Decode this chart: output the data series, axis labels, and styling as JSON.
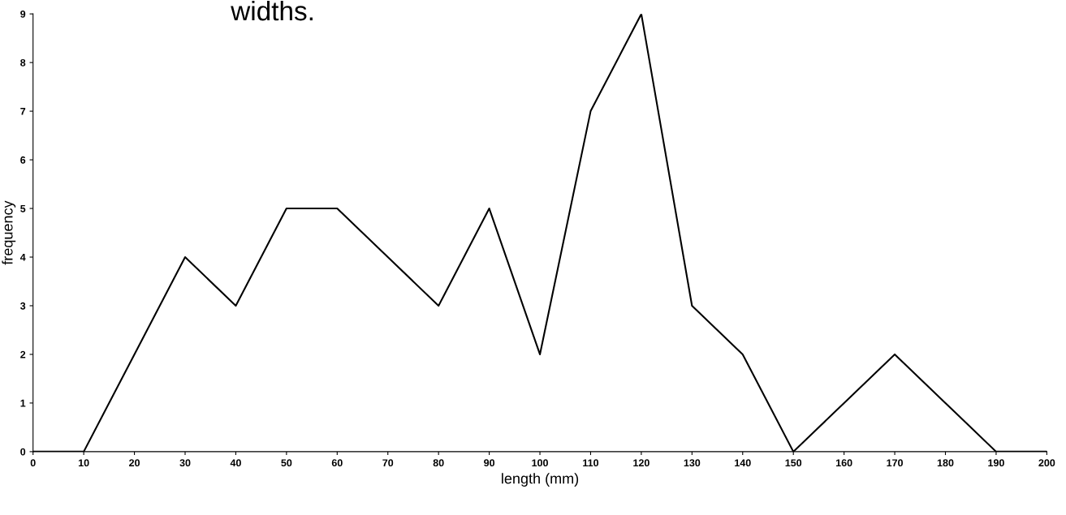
{
  "chart_data": {
    "type": "line",
    "title": "widths.",
    "xlabel": "length (mm)",
    "ylabel": "frequency",
    "x": [
      0,
      10,
      20,
      30,
      40,
      50,
      60,
      70,
      80,
      90,
      100,
      110,
      120,
      130,
      140,
      150,
      160,
      170,
      180,
      190,
      200
    ],
    "series": [
      {
        "color": "#000000",
        "values": [
          0,
          0,
          2,
          4,
          3,
          5,
          5,
          4,
          3,
          5,
          2,
          7,
          9,
          3,
          2,
          0,
          1,
          2,
          1,
          0,
          0
        ]
      }
    ],
    "xlim": [
      0,
      200
    ],
    "xticks": [
      0,
      10,
      20,
      30,
      40,
      50,
      60,
      70,
      80,
      90,
      100,
      110,
      120,
      130,
      140,
      150,
      160,
      170,
      180,
      190,
      200
    ],
    "ylim": [
      0,
      9
    ],
    "yticks": [
      0,
      1,
      2,
      3,
      4,
      5,
      6,
      7,
      8,
      9
    ],
    "grid": false,
    "legend": false,
    "marker": "none",
    "line_style": "solid"
  }
}
